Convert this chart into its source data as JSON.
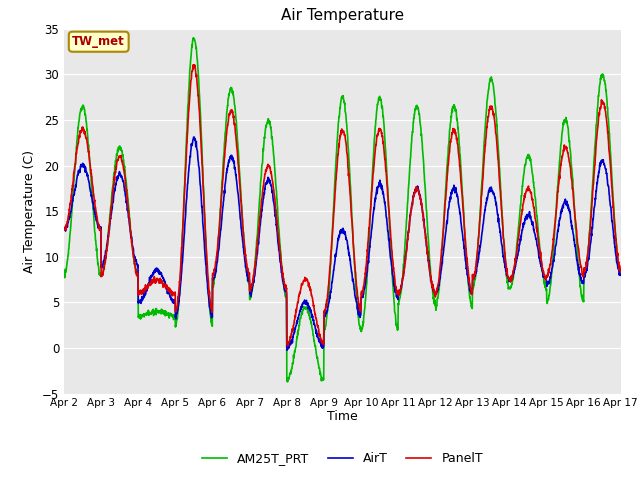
{
  "title": "Air Temperature",
  "ylabel": "Air Temperature (C)",
  "xlabel": "Time",
  "ylim": [
    -5,
    35
  ],
  "background_color": "#e8e8e8",
  "figure_color": "#ffffff",
  "grid_color": "#ffffff",
  "annotation_text": "TW_met",
  "annotation_box_color": "#ffffcc",
  "annotation_border_color": "#aa8800",
  "annotation_text_color": "#aa0000",
  "legend_labels": [
    "PanelT",
    "AirT",
    "AM25T_PRT"
  ],
  "line_colors": [
    "#dd0000",
    "#0000cc",
    "#00bb00"
  ],
  "line_width": 1.2,
  "xtick_labels": [
    "Apr 2",
    "Apr 3",
    "Apr 4",
    "Apr 5",
    "Apr 6",
    "Apr 7",
    "Apr 8",
    "Apr 9",
    "Apr 10",
    "Apr 11",
    "Apr 12",
    "Apr 13",
    "Apr 14",
    "Apr 15",
    "Apr 16",
    "Apr 17"
  ],
  "n_days": 15,
  "points_per_day": 144
}
